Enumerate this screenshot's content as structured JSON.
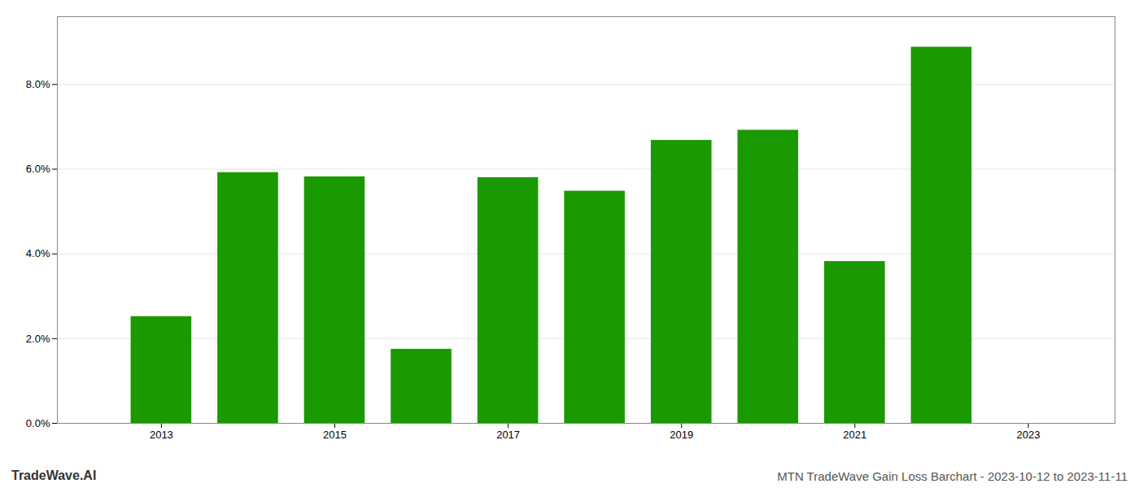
{
  "chart_data": {
    "type": "bar",
    "title": "MTN TradeWave Gain Loss Barchart - 2023-10-12 to 2023-11-11",
    "annotations": [
      "TradeWave.AI"
    ],
    "x": [
      2013,
      2014,
      2015,
      2016,
      2017,
      2018,
      2019,
      2020,
      2021,
      2022
    ],
    "values": [
      0.0252,
      0.0592,
      0.0582,
      0.0175,
      0.058,
      0.0548,
      0.0668,
      0.0692,
      0.0382,
      0.0888
    ],
    "color": "#1a9900",
    "xlim": [
      2011.8,
      2024.0
    ],
    "xticks": [
      2013,
      2015,
      2017,
      2019,
      2021,
      2023
    ],
    "ylim": [
      0,
      0.096
    ],
    "yticks": [
      {
        "value": 0.0,
        "label": "0.0%"
      },
      {
        "value": 0.02,
        "label": "2.0%"
      },
      {
        "value": 0.04,
        "label": "4.0%"
      },
      {
        "value": 0.06,
        "label": "6.0%"
      },
      {
        "value": 0.08,
        "label": "8.0%"
      }
    ],
    "grid": true
  }
}
